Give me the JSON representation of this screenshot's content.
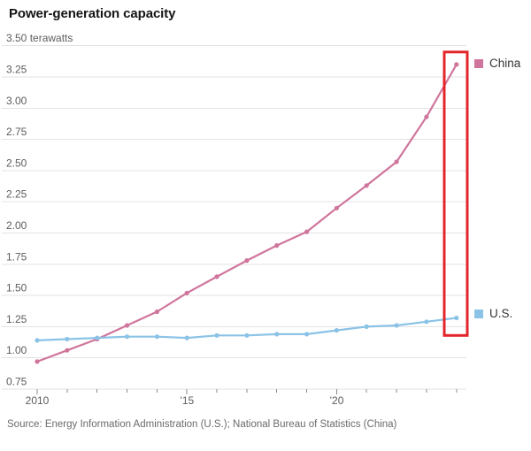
{
  "title": "Power-generation capacity",
  "source": "Source: Energy Information Administration (U.S.); National Bureau of Statistics (China)",
  "legend": {
    "china_label": "China",
    "us_label": "U.S."
  },
  "colors": {
    "china_line": "#d0759c",
    "us_line": "#8bc3e6",
    "highlight_box": "#e3252b",
    "gridline": "#e3e3e3",
    "tick": "#8a8a8a",
    "axis_text": "#5c5c5c"
  },
  "chart_data": {
    "type": "line",
    "title": "Power-generation capacity",
    "unit_label": "terawatts",
    "x": [
      2010,
      2011,
      2012,
      2013,
      2014,
      2015,
      2016,
      2017,
      2018,
      2019,
      2020,
      2021,
      2022,
      2023,
      2024
    ],
    "x_tick_labels": [
      {
        "year": 2010,
        "label": "2010"
      },
      {
        "year": 2015,
        "label": "’15"
      },
      {
        "year": 2020,
        "label": "’20"
      }
    ],
    "y_min": 0.75,
    "y_max": 3.5,
    "y_ticks": [
      0.75,
      1.0,
      1.25,
      1.5,
      1.75,
      2.0,
      2.25,
      2.5,
      2.75,
      3.0,
      3.25,
      3.5
    ],
    "grid": true,
    "legend_position": "right",
    "series": [
      {
        "name": "China",
        "color": "#d0759c",
        "values": [
          0.97,
          1.06,
          1.15,
          1.26,
          1.37,
          1.52,
          1.65,
          1.78,
          1.9,
          2.01,
          2.2,
          2.38,
          2.57,
          2.93,
          3.35
        ]
      },
      {
        "name": "U.S.",
        "color": "#8bc3e6",
        "values": [
          1.14,
          1.15,
          1.16,
          1.17,
          1.17,
          1.16,
          1.18,
          1.18,
          1.19,
          1.19,
          1.22,
          1.25,
          1.26,
          1.29,
          1.32
        ]
      }
    ],
    "annotation": {
      "type": "highlight-box",
      "year": 2024,
      "color": "#e3252b",
      "y_top_value": 3.45,
      "y_bottom_value": 1.18
    }
  }
}
